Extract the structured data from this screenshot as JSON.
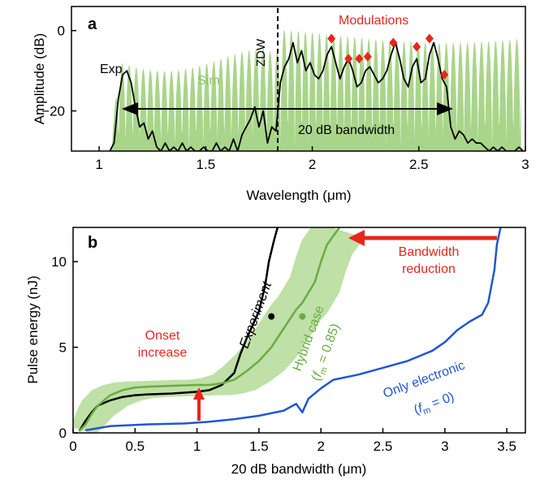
{
  "chart_data": [
    {
      "panel": "a",
      "type": "line",
      "xlabel": "Wavelength (μm)",
      "ylabel": "Amplitude (dB)",
      "xlim": [
        0.87,
        3.0
      ],
      "ylim": [
        -30,
        6
      ],
      "xticks": [
        "1",
        "1.5",
        "2",
        "2.5",
        "3"
      ],
      "yticks": [
        "0",
        "−20"
      ],
      "series": [
        {
          "name": "Exp",
          "color": "#000000",
          "style": "line",
          "x": [
            1.05,
            1.07,
            1.09,
            1.11,
            1.13,
            1.15,
            1.17,
            1.19,
            1.21,
            1.23,
            1.25,
            1.27,
            1.29,
            1.31,
            1.33,
            1.35,
            1.37,
            1.39,
            1.41,
            1.43,
            1.45,
            1.47,
            1.49,
            1.51,
            1.53,
            1.55,
            1.57,
            1.59,
            1.61,
            1.63,
            1.65,
            1.67,
            1.69,
            1.71,
            1.73,
            1.75,
            1.77,
            1.79,
            1.81,
            1.83,
            1.85,
            1.87,
            1.89,
            1.91,
            1.93,
            1.95,
            1.97,
            1.99,
            2.01,
            2.03,
            2.05,
            2.07,
            2.09,
            2.11,
            2.13,
            2.15,
            2.17,
            2.19,
            2.21,
            2.23,
            2.25,
            2.27,
            2.29,
            2.31,
            2.33,
            2.35,
            2.37,
            2.39,
            2.41,
            2.43,
            2.45,
            2.47,
            2.49,
            2.51,
            2.53,
            2.55,
            2.57,
            2.59,
            2.61,
            2.63,
            2.65,
            2.67,
            2.69,
            2.71,
            2.73,
            2.75,
            2.77,
            2.79,
            2.81,
            2.83,
            2.85,
            2.87,
            2.89,
            2.91,
            2.93,
            2.95,
            2.97,
            2.99
          ],
          "y": [
            -30,
            -28,
            -17,
            -11,
            -10,
            -13,
            -19,
            -24,
            -23,
            -27,
            -25,
            -29,
            -30,
            -28,
            -30,
            -29,
            -30,
            -28,
            -30,
            -29,
            -30,
            -30,
            -29,
            -30,
            -30,
            -28,
            -30,
            -29,
            -30,
            -27,
            -30,
            -26,
            -24,
            -22,
            -19,
            -24,
            -20,
            -28,
            -24,
            -25,
            -13,
            -9,
            -7,
            -3,
            -8,
            -5,
            -10,
            -8,
            -11,
            -12,
            -10,
            -6,
            -4,
            -8,
            -12,
            -9,
            -7,
            -10,
            -14,
            -13,
            -10,
            -9,
            -11,
            -13,
            -12,
            -10,
            -6,
            -3,
            -7,
            -12,
            -14,
            -9,
            -7,
            -13,
            -12,
            -6,
            -3,
            -7,
            -12,
            -14,
            -24,
            -27,
            -25,
            -26,
            -28,
            -27,
            -28,
            -28,
            -29,
            -30,
            -29,
            -30,
            -29,
            -30,
            -30,
            -30,
            -29,
            -30
          ]
        },
        {
          "name": "Sim",
          "color": "#9fd07c",
          "style": "area"
        }
      ],
      "annotations": [
        {
          "text": "Exp"
        },
        {
          "text": "Sim"
        },
        {
          "text": "ZDW",
          "x": 1.8
        },
        {
          "text": "Modulations",
          "points_x": [
            2.09,
            2.17,
            2.22,
            2.26,
            2.38,
            2.49,
            2.55,
            2.62
          ],
          "points_y": [
            -2,
            -7,
            -7,
            -6.5,
            -3,
            -4,
            -2,
            -11
          ]
        },
        {
          "text": "20 dB bandwidth",
          "from": 1.1,
          "to": 2.63,
          "y": -20
        }
      ]
    },
    {
      "panel": "b",
      "type": "line",
      "xlabel": "20 dB bandwidth (μm)",
      "ylabel": "Pulse energy (nJ)",
      "xlim": [
        0,
        3.65
      ],
      "ylim": [
        0,
        12
      ],
      "xticks": [
        "0",
        "0.5",
        "1",
        "1.5",
        "2",
        "2.5",
        "3",
        "3.5"
      ],
      "yticks": [
        "0",
        "5",
        "10"
      ],
      "series": [
        {
          "name": "Experiment",
          "color": "#000000",
          "x": [
            0.05,
            0.1,
            0.15,
            0.2,
            0.3,
            0.4,
            0.5,
            0.6,
            0.8,
            1.0,
            1.1,
            1.2,
            1.3,
            1.35,
            1.4,
            1.45,
            1.5,
            1.55,
            1.58,
            1.62,
            1.65
          ],
          "y": [
            0.1,
            0.7,
            1.2,
            1.6,
            1.9,
            2.1,
            2.2,
            2.25,
            2.3,
            2.4,
            2.5,
            2.8,
            3.5,
            4.6,
            5.5,
            6.3,
            7.1,
            8.6,
            10.0,
            11.2,
            12.0
          ]
        },
        {
          "name": "Hybrid case (f_m = 0.85)",
          "color": "#6aab44",
          "x": [
            0.05,
            0.1,
            0.15,
            0.2,
            0.3,
            0.4,
            0.5,
            0.6,
            0.8,
            1.0,
            1.1,
            1.2,
            1.3,
            1.4,
            1.5,
            1.6,
            1.7,
            1.8,
            1.85,
            1.95,
            2.0,
            2.05,
            2.1,
            2.15
          ],
          "y": [
            0.1,
            0.5,
            1.1,
            1.6,
            2.2,
            2.5,
            2.65,
            2.7,
            2.75,
            2.8,
            2.8,
            2.9,
            3.1,
            3.6,
            4.2,
            5.0,
            6.1,
            7.2,
            7.6,
            8.8,
            10.0,
            11.0,
            11.5,
            12.0
          ]
        },
        {
          "name": "Only electronic (f_m = 0)",
          "color": "#1f56d6",
          "x": [
            0.1,
            0.3,
            0.6,
            0.9,
            1.1,
            1.3,
            1.5,
            1.7,
            1.8,
            1.85,
            1.9,
            2.0,
            2.1,
            2.3,
            2.5,
            2.7,
            2.9,
            3.0,
            3.1,
            3.2,
            3.3,
            3.35,
            3.4,
            3.42,
            3.45
          ],
          "y": [
            0.15,
            0.4,
            0.5,
            0.55,
            0.65,
            0.8,
            1.0,
            1.3,
            1.7,
            1.2,
            2.0,
            2.6,
            3.1,
            3.4,
            3.8,
            4.2,
            4.8,
            5.3,
            6.0,
            6.5,
            6.9,
            7.6,
            9.5,
            11.0,
            12.0
          ]
        }
      ],
      "markers": [
        {
          "series": "Experiment",
          "x": 1.6,
          "y": 6.8
        },
        {
          "series": "Hybrid case (f_m = 0.85)",
          "x": 1.85,
          "y": 6.8
        }
      ],
      "annotations": [
        {
          "text": "Bandwidth reduction",
          "color": "#e8251d"
        },
        {
          "text": "Onset increase",
          "color": "#e8251d",
          "arrow_x": 1.0,
          "arrow_from": 0.5,
          "arrow_to": 2.4
        }
      ]
    }
  ],
  "labels": {
    "panel_a": "a",
    "panel_b": "b",
    "exp": "Exp",
    "sim": "Sim",
    "zdw": "ZDW",
    "modulations": "Modulations",
    "bandwidth20": "20 dB bandwidth",
    "bandwidth_reduction_1": "Bandwidth",
    "bandwidth_reduction_2": "reduction",
    "onset_1": "Onset",
    "onset_2": "increase",
    "experiment": "Experiment",
    "hybrid_1": "Hybrid case",
    "hybrid_2a": "(",
    "hybrid_2b": "f",
    "hybrid_2c": "m",
    "hybrid_2d": " = 0.85)",
    "electronic_1": "Only electronic",
    "electronic_2a": "(",
    "electronic_2b": "f",
    "electronic_2c": "m",
    "electronic_2d": " = 0)"
  },
  "colors": {
    "red": "#e8251d",
    "sim_fill": "#a9d58a",
    "hybrid": "#6aab44",
    "hybrid_band": "#bfe0a6",
    "electronic": "#1f56d6",
    "black": "#000000"
  }
}
